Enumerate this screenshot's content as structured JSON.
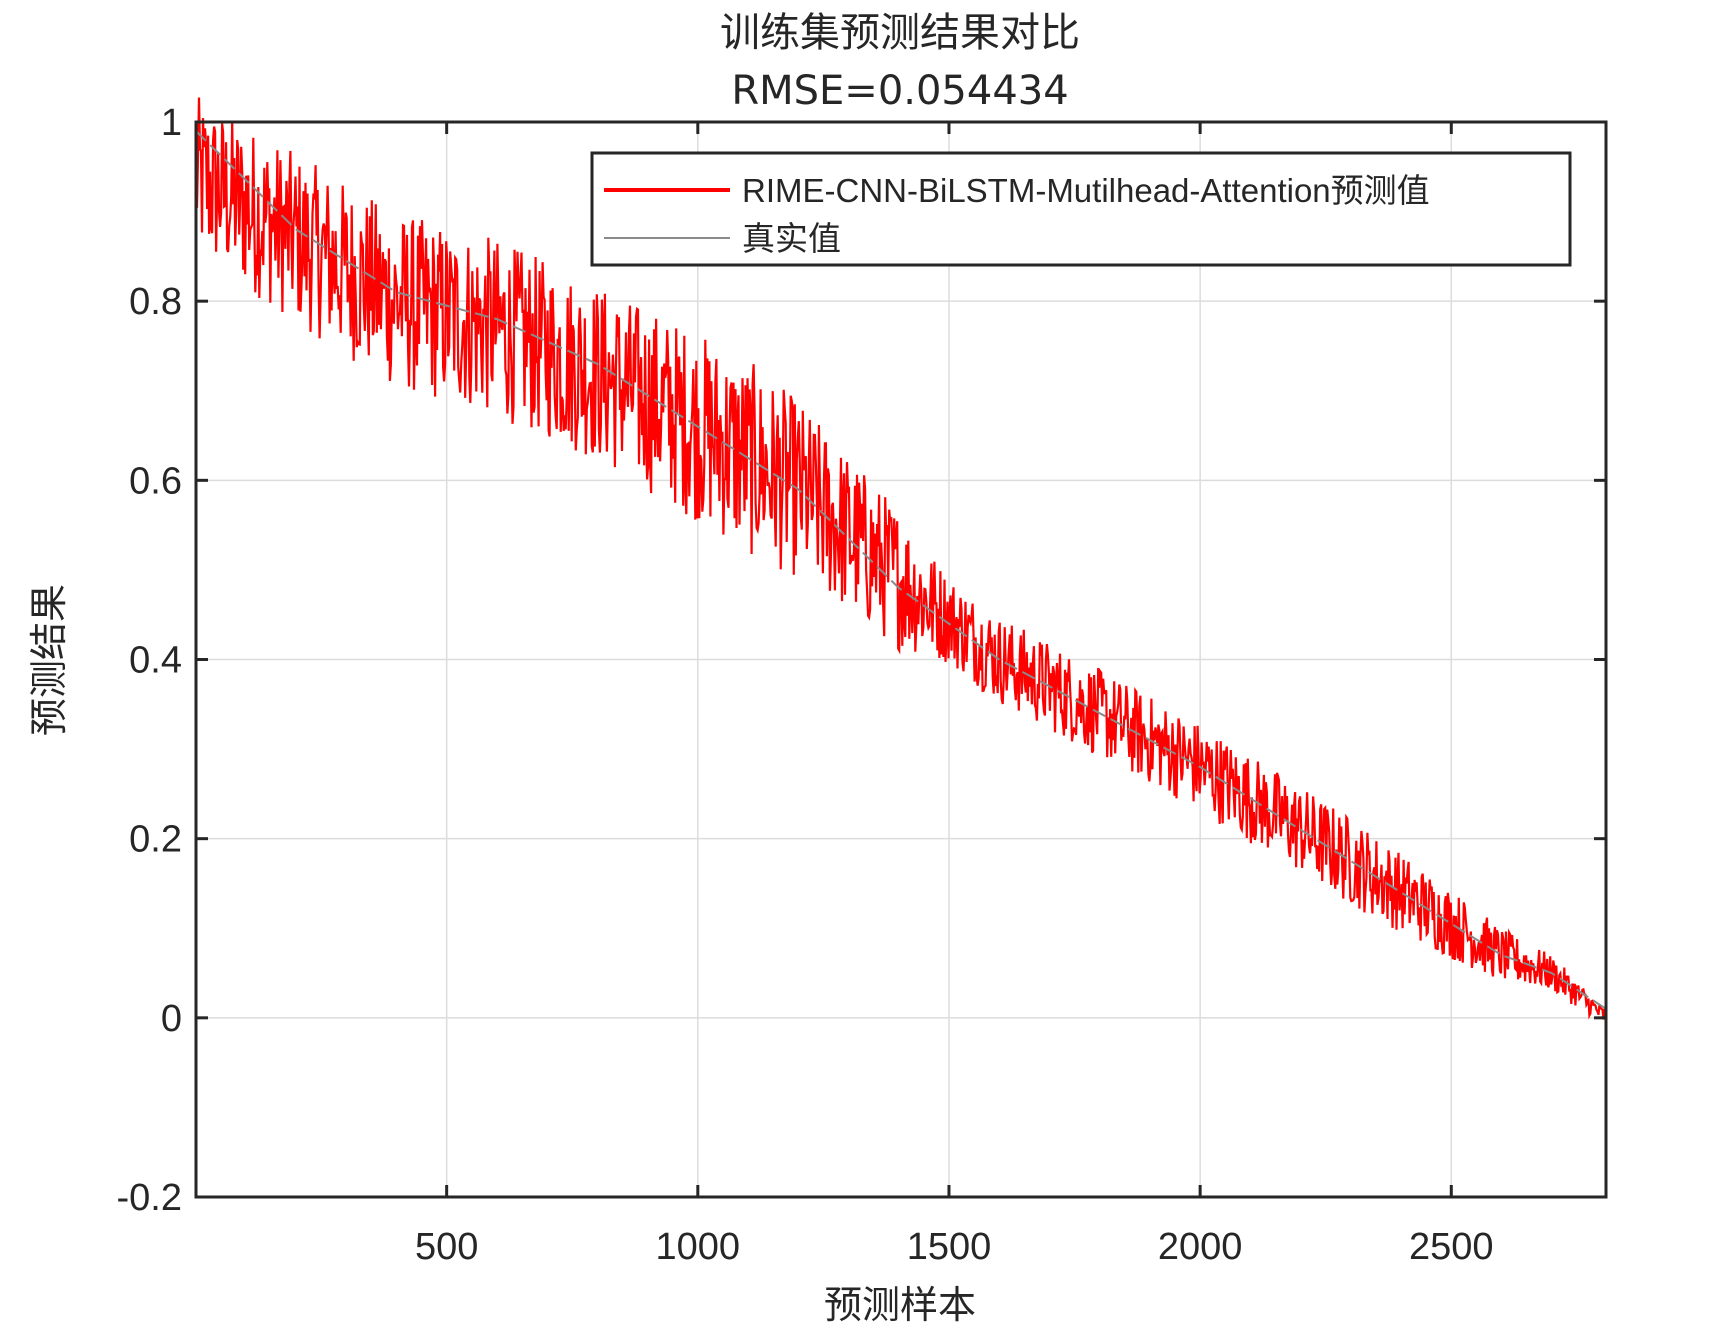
{
  "chart_data": {
    "type": "line",
    "title": "训练集预测结果对比",
    "subtitle": "RMSE=0.054434",
    "xlabel": "预测样本",
    "ylabel": "预测结果",
    "xlim": [
      1,
      2808
    ],
    "ylim": [
      -0.2,
      1
    ],
    "x_ticks": [
      500,
      1000,
      1500,
      2000,
      2500
    ],
    "y_ticks": [
      -0.2,
      0,
      0.2,
      0.4,
      0.6,
      0.8,
      1
    ],
    "grid": true,
    "legend_position": "top-right",
    "series": [
      {
        "name": "RIME-CNN-BiLSTM-Mutilhead-Attention预测值",
        "color": "#ff0000",
        "noise_band": [
          [
            1,
            0.09
          ],
          [
            400,
            0.1
          ],
          [
            800,
            0.1
          ],
          [
            1100,
            0.11
          ],
          [
            1400,
            0.08
          ],
          [
            1500,
            0.05
          ],
          [
            1900,
            0.05
          ],
          [
            2300,
            0.05
          ],
          [
            2500,
            0.04
          ],
          [
            2700,
            0.02
          ],
          [
            2808,
            0.01
          ]
        ],
        "values_trend": [
          [
            1,
            0.94
          ],
          [
            200,
            0.87
          ],
          [
            400,
            0.8
          ],
          [
            600,
            0.77
          ],
          [
            800,
            0.72
          ],
          [
            1000,
            0.66
          ],
          [
            1200,
            0.59
          ],
          [
            1400,
            0.49
          ],
          [
            1600,
            0.4
          ],
          [
            1800,
            0.34
          ],
          [
            2000,
            0.28
          ],
          [
            2200,
            0.21
          ],
          [
            2400,
            0.14
          ],
          [
            2600,
            0.07
          ],
          [
            2700,
            0.05
          ],
          [
            2808,
            0.0
          ]
        ]
      },
      {
        "name": "真实值",
        "color": "#8a8a8a",
        "values": [
          [
            1,
            0.99
          ],
          [
            200,
            0.88
          ],
          [
            400,
            0.81
          ],
          [
            600,
            0.78
          ],
          [
            800,
            0.73
          ],
          [
            1000,
            0.66
          ],
          [
            1200,
            0.59
          ],
          [
            1400,
            0.48
          ],
          [
            1600,
            0.4
          ],
          [
            1800,
            0.34
          ],
          [
            2000,
            0.28
          ],
          [
            2200,
            0.21
          ],
          [
            2400,
            0.14
          ],
          [
            2600,
            0.07
          ],
          [
            2700,
            0.05
          ],
          [
            2808,
            0.01
          ]
        ]
      }
    ]
  }
}
